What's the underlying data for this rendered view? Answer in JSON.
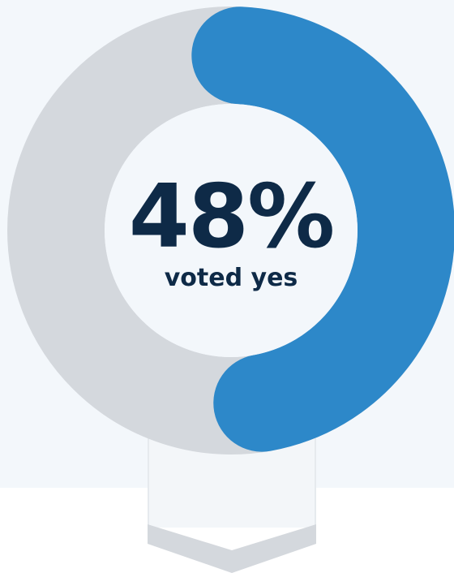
{
  "chart_data": {
    "type": "pie",
    "style": "donut",
    "value_percent": 48,
    "remainder_percent": 52,
    "value_label": "48%",
    "caption": "voted yes",
    "colors": {
      "value": "#2d88c9",
      "remainder": "#d4d8dd",
      "center_fill": "#f3f7fb",
      "text": "#0e2a47"
    }
  }
}
